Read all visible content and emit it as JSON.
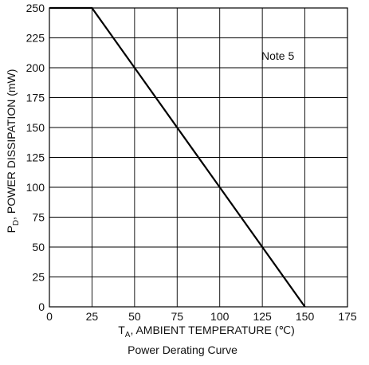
{
  "chart_data": {
    "type": "line",
    "title": "Power Derating Curve",
    "xlabel": {
      "main": "T",
      "sub": "A",
      "rest": ", AMBIENT TEMPERATURE (℃)"
    },
    "ylabel": {
      "main": "P",
      "sub": "D",
      "rest": ", POWER DISSIPATION (mW)"
    },
    "xlim": [
      0,
      175
    ],
    "ylim": [
      0,
      250
    ],
    "x_ticks": [
      0,
      25,
      50,
      75,
      100,
      125,
      150,
      175
    ],
    "y_ticks": [
      0,
      25,
      50,
      75,
      100,
      125,
      150,
      175,
      200,
      225,
      250
    ],
    "grid": true,
    "annotation": "Note 5",
    "series": [
      {
        "x": [
          0,
          25,
          150
        ],
        "y": [
          250,
          250,
          0
        ]
      }
    ]
  }
}
